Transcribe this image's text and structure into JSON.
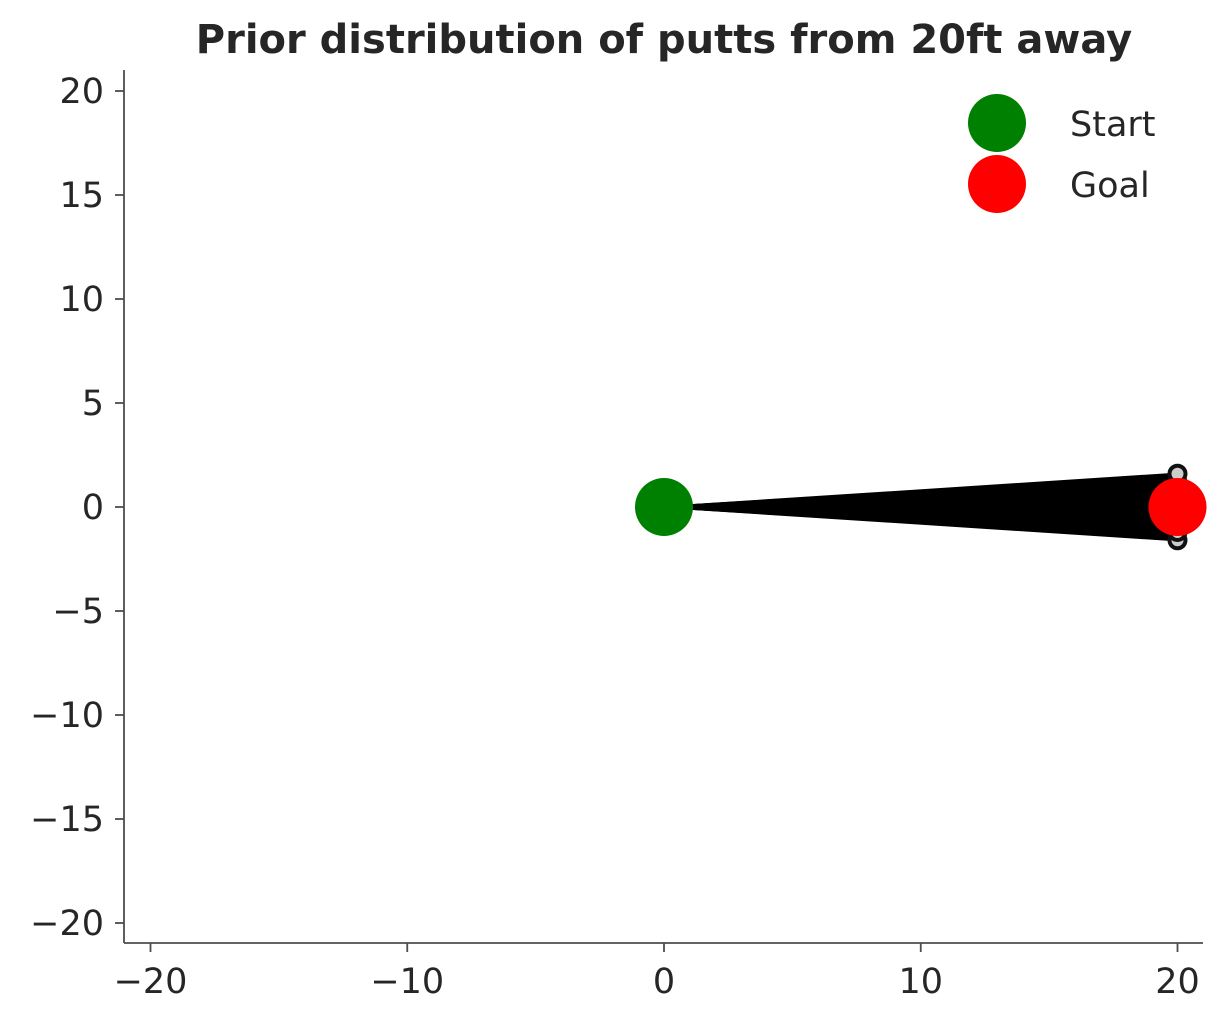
{
  "chart_data": {
    "type": "scatter",
    "title": "Prior distribution of putts from 20ft away",
    "xlabel": "",
    "ylabel": "",
    "xlim": [
      -21,
      21
    ],
    "ylim": [
      -21,
      21
    ],
    "x_ticks": [
      -20,
      -10,
      0,
      10,
      20
    ],
    "y_ticks": [
      -20,
      -15,
      -10,
      -5,
      0,
      5,
      10,
      15,
      20
    ],
    "x_tick_labels": [
      "−20",
      "−10",
      "0",
      "10",
      "20"
    ],
    "y_tick_labels": [
      "−20",
      "−15",
      "−10",
      "−5",
      "0",
      "5",
      "10",
      "15",
      "20"
    ],
    "grid": false,
    "legend_position": "top-right",
    "series": [
      {
        "name": "Start",
        "color": "#008000",
        "points": [
          {
            "x": 0,
            "y": 0
          }
        ]
      },
      {
        "name": "Goal",
        "color": "#ff0000",
        "points": [
          {
            "x": 20,
            "y": 0
          }
        ]
      }
    ],
    "putt_paths": {
      "color": "#000000",
      "start": {
        "x": 0,
        "y": 0
      },
      "end_x": 20,
      "end_y_min": -1.6,
      "end_y_max": 1.6
    }
  }
}
